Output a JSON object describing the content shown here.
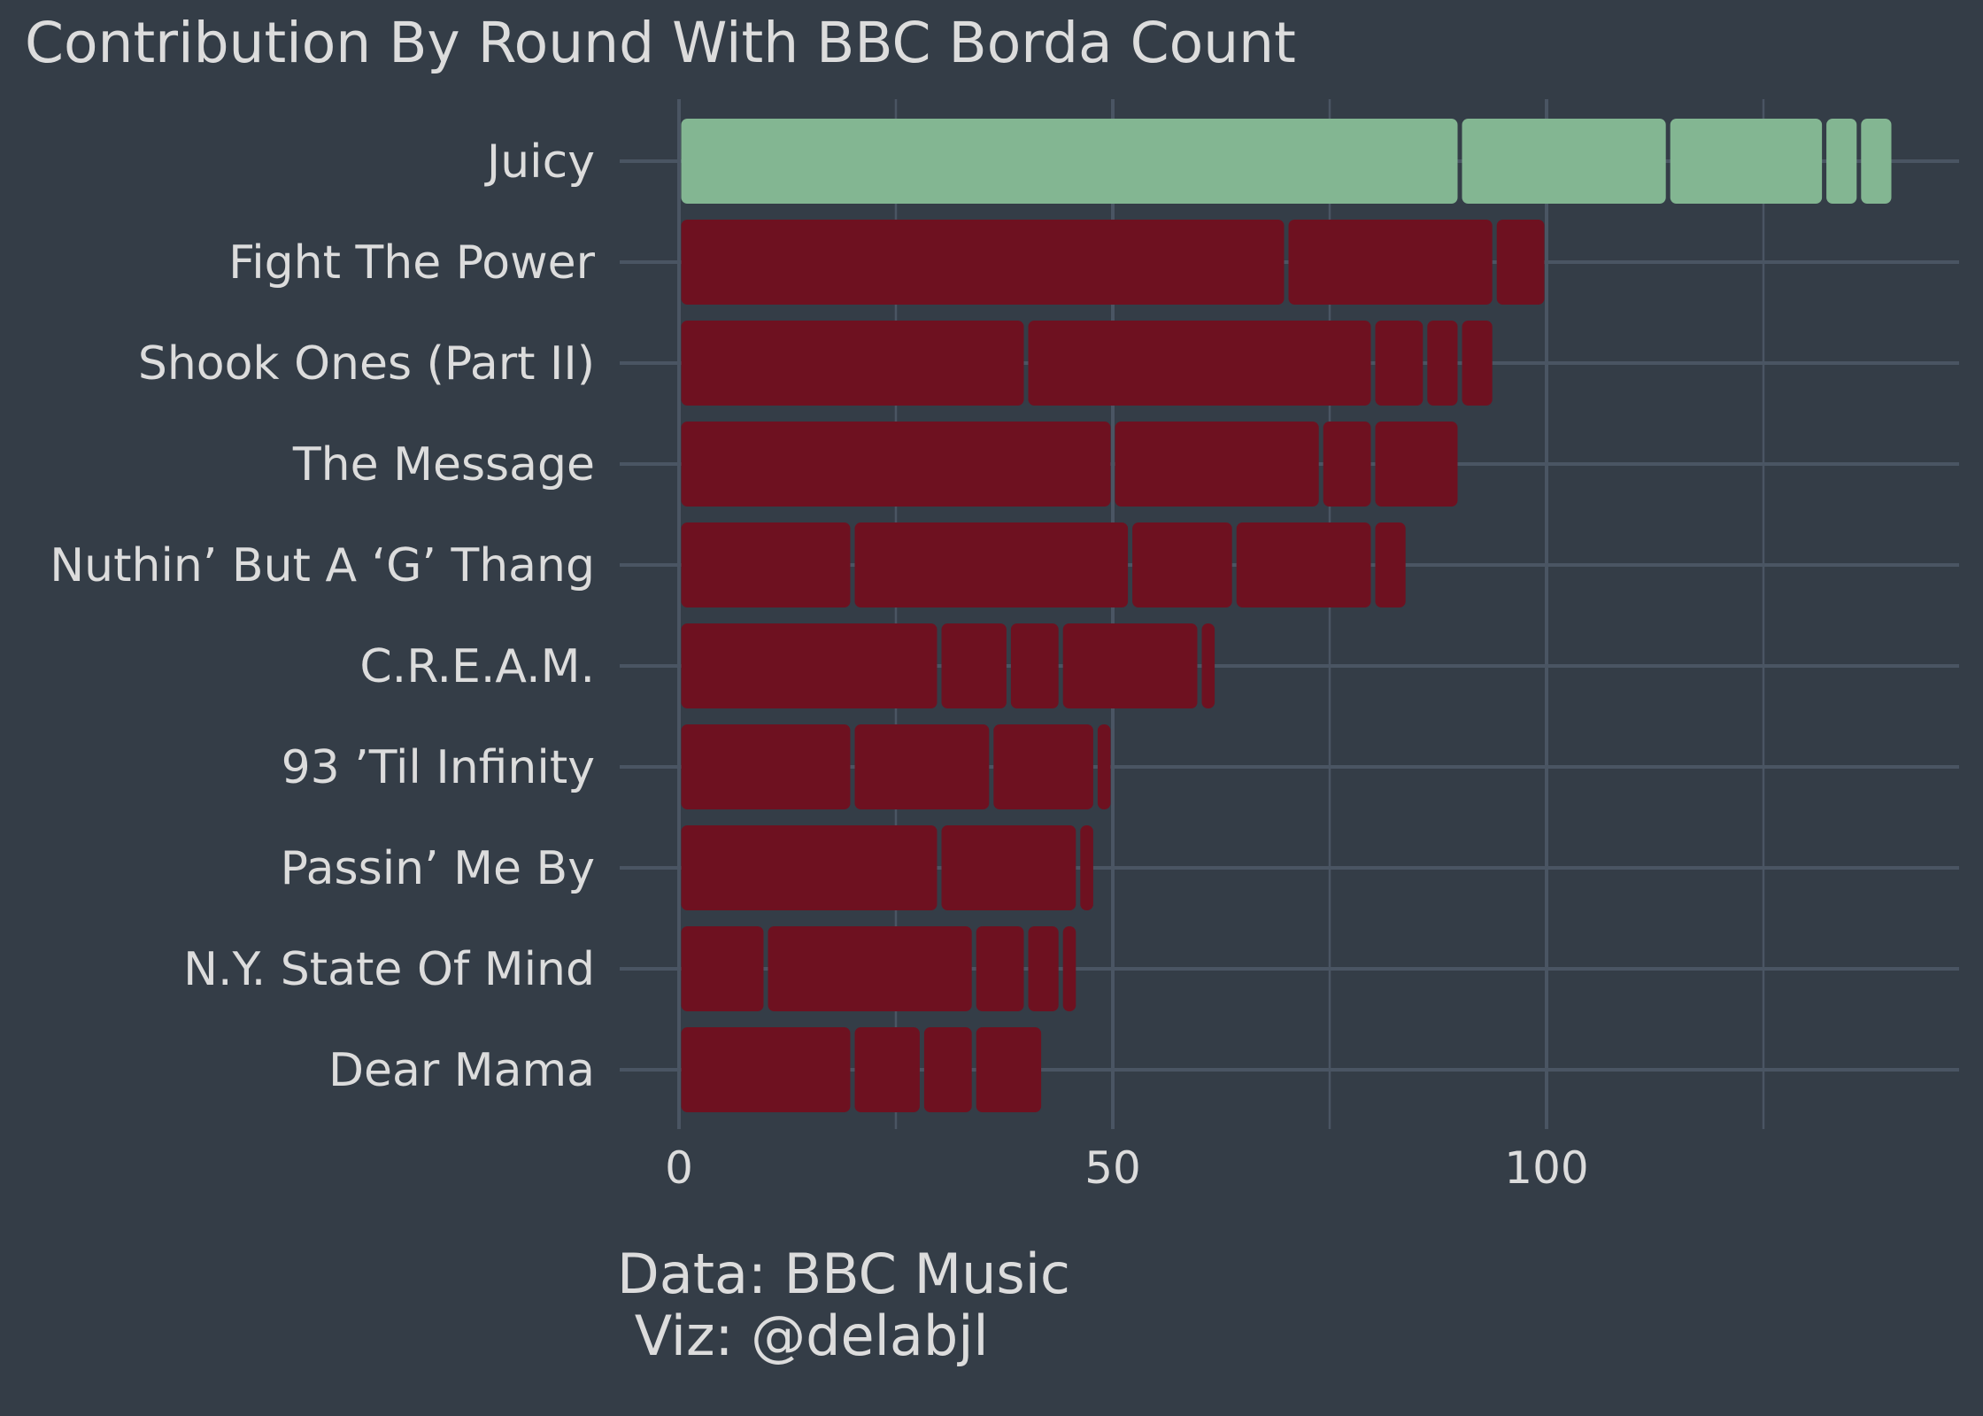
{
  "chart_data": {
    "type": "bar",
    "orientation": "horizontal",
    "stacked": true,
    "title": "Contribution By Round With BBC Borda Count",
    "caption": [
      "Data: BBC Music",
      " Viz: @delabjl"
    ],
    "xlim": [
      0,
      147
    ],
    "xticks": [
      0,
      50,
      100
    ],
    "grid": true,
    "categories": [
      "Juicy",
      "Fight The Power",
      "Shook Ones (Part II)",
      "The Message",
      "Nuthin’ But A ‘G’ Thang",
      "C.R.E.A.M.",
      "93 ’Til Infinity",
      "Passin’ Me By",
      "N.Y. State Of Mind",
      "Dear Mama"
    ],
    "segments": [
      [
        90,
        24,
        18,
        4,
        4
      ],
      [
        70,
        24,
        6
      ],
      [
        40,
        40,
        6,
        4,
        4
      ],
      [
        50,
        24,
        6,
        10
      ],
      [
        20,
        32,
        12,
        16,
        4
      ],
      [
        30,
        8,
        6,
        16,
        2
      ],
      [
        20,
        16,
        12,
        2
      ],
      [
        30,
        16,
        2
      ],
      [
        10,
        24,
        6,
        4,
        2
      ],
      [
        20,
        8,
        6,
        8
      ]
    ],
    "highlight_category": "Juicy",
    "colors": {
      "background": "#343d47",
      "highlight": "#83b692",
      "default": "#6e1120",
      "grid": "#4a5563",
      "text": "#dcdcdc"
    }
  }
}
